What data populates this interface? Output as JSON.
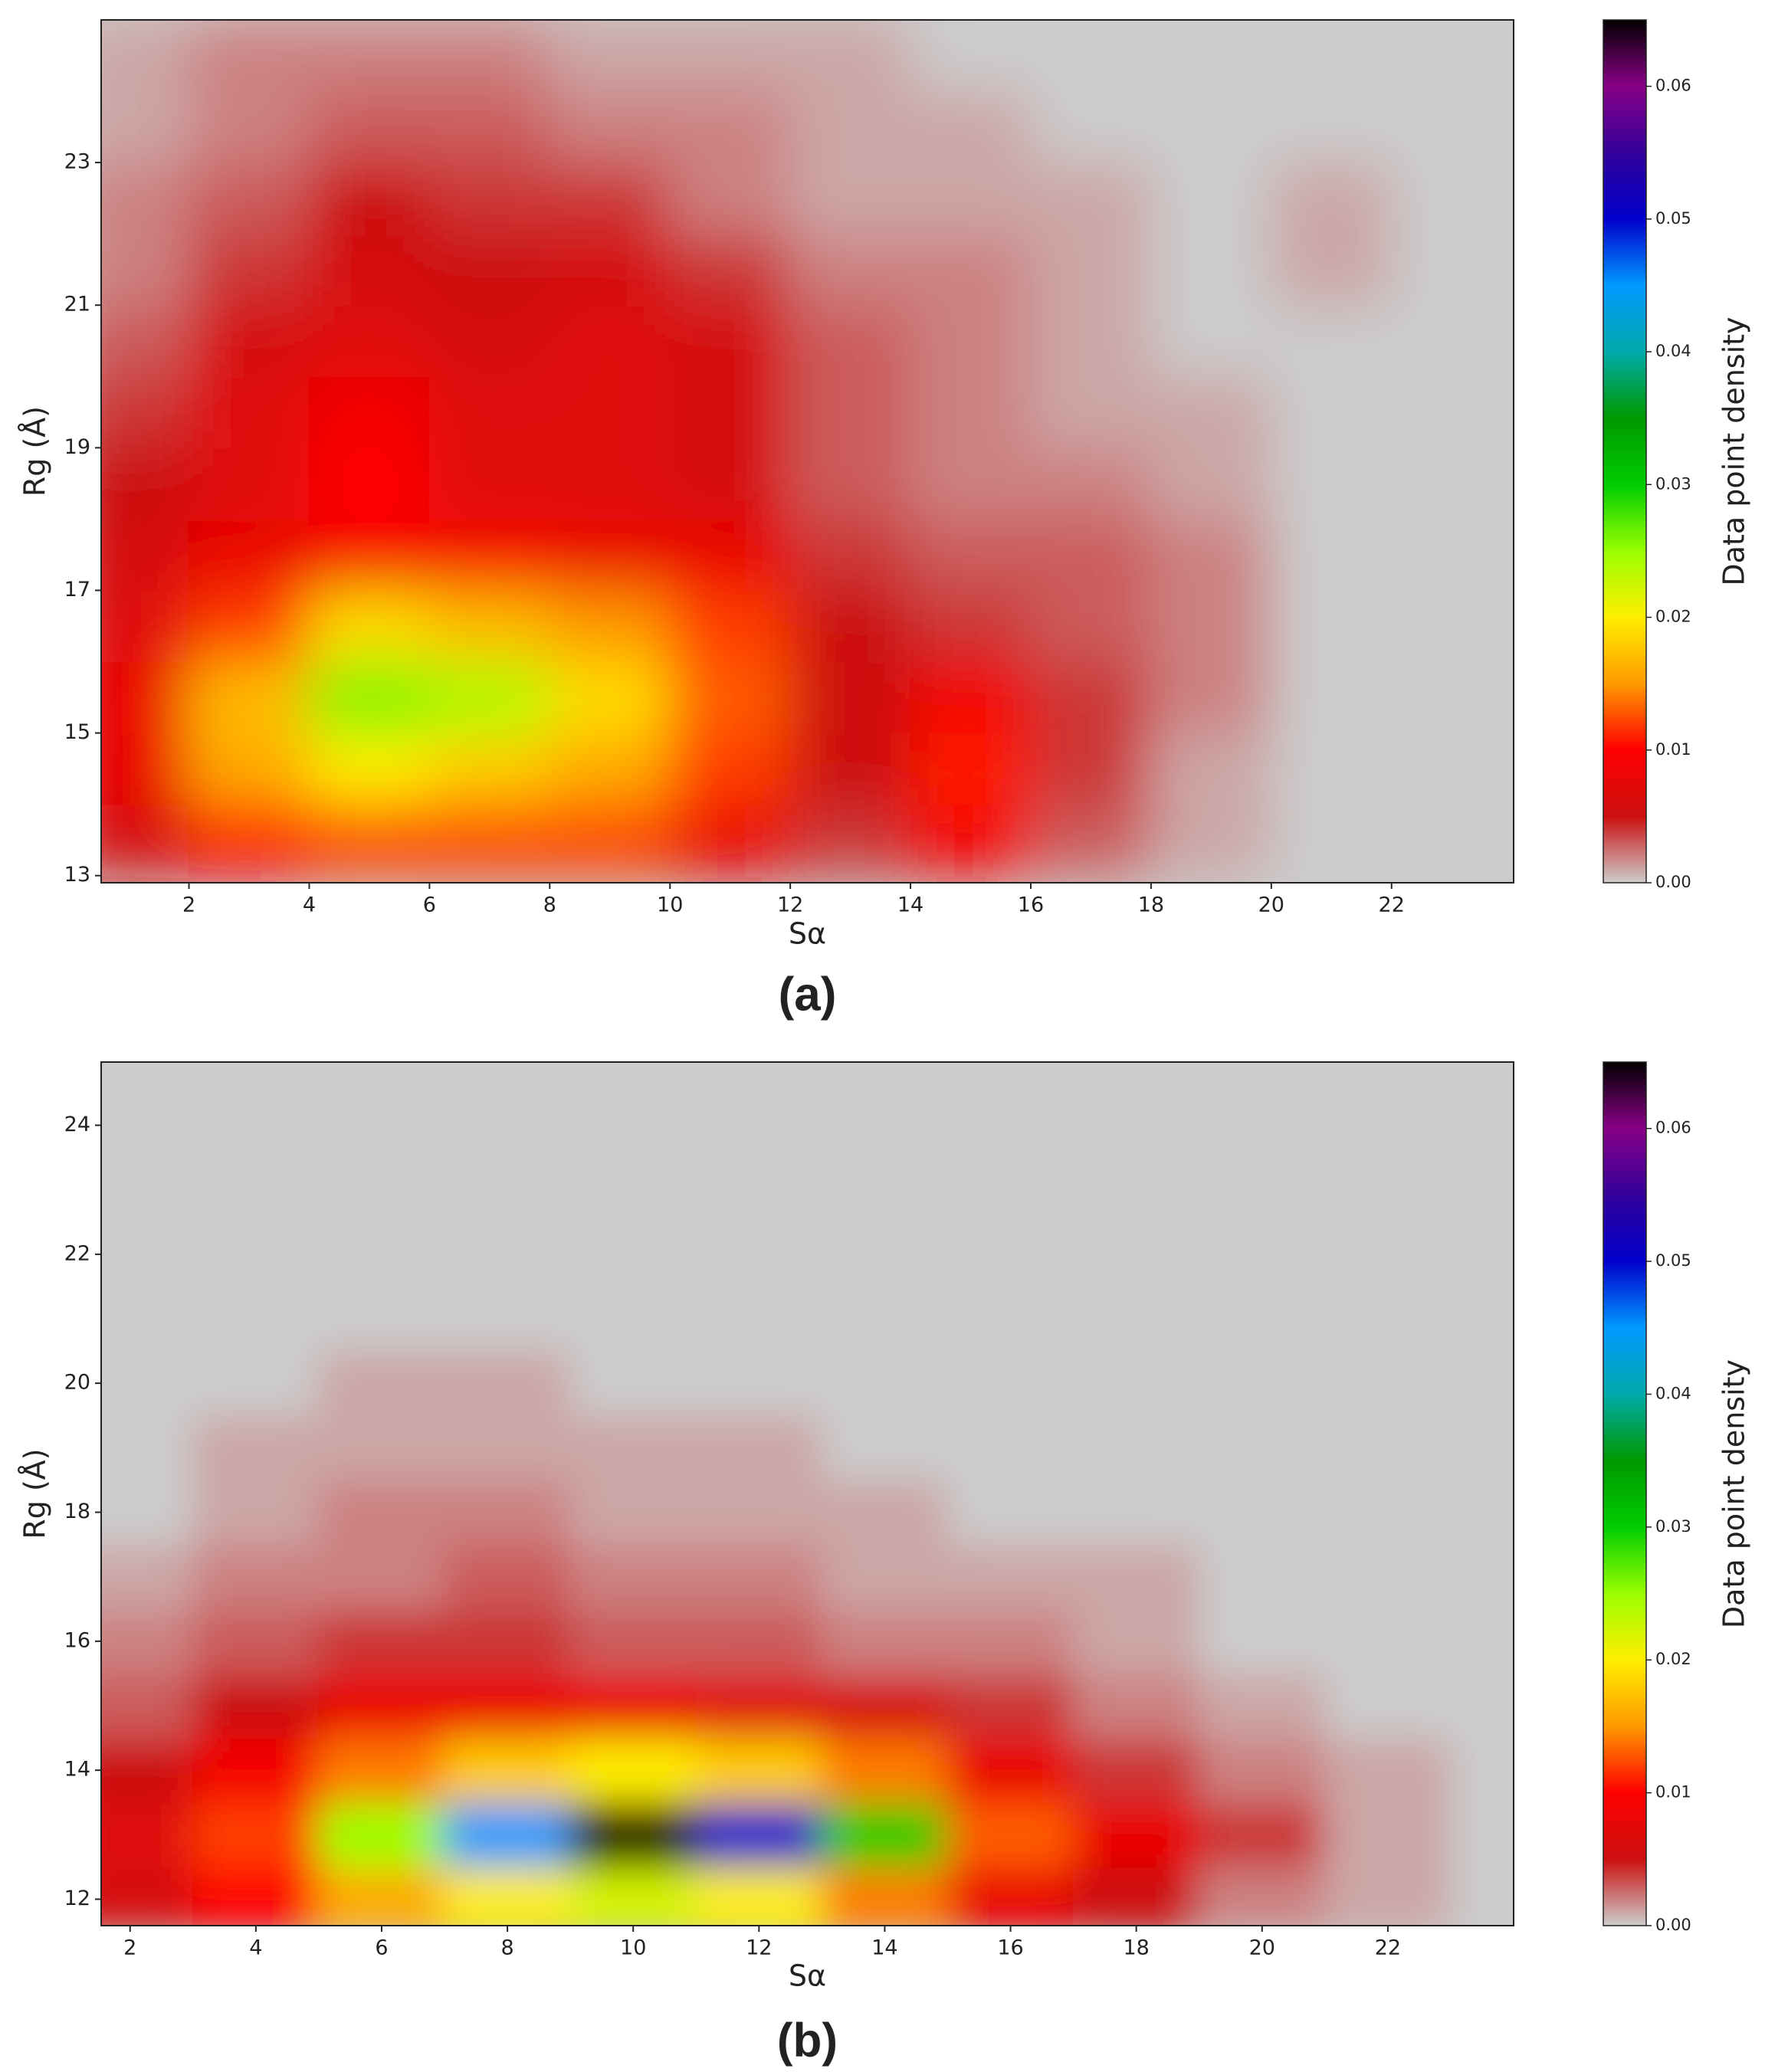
{
  "chart_data": [
    {
      "type": "heatmap",
      "panel_label": "(a)",
      "x_label": "Sα",
      "y_label": "Rg (Å)",
      "colorbar_label": "Data point density",
      "xlim": [
        0.54,
        24.03
      ],
      "ylim": [
        12.9,
        25
      ],
      "xticks": [
        2,
        4,
        6,
        8,
        10,
        12,
        14,
        16,
        18,
        20,
        22
      ],
      "yticks": [
        13,
        15,
        17,
        19,
        21,
        23
      ],
      "clim": [
        0,
        0.065
      ],
      "cticks": [
        {
          "value": 0,
          "label": "0.00"
        },
        {
          "value": 0.01,
          "label": "0.01"
        },
        {
          "value": 0.02,
          "label": "0.02"
        },
        {
          "value": 0.03,
          "label": "0.03"
        },
        {
          "value": 0.04,
          "label": "0.04"
        },
        {
          "value": 0.05,
          "label": "0.05"
        },
        {
          "value": 0.06,
          "label": "0.06"
        }
      ],
      "colormap": [
        "#cccccc",
        "#cc1010",
        "#ff0000",
        "#ff9900",
        "#ffee00",
        "#99ff00",
        "#00cc00",
        "#009900",
        "#00aaaa",
        "#0099ff",
        "#0000cc",
        "#330099",
        "#880088",
        "#000000"
      ],
      "x": [
        1,
        3,
        5,
        7,
        9,
        11,
        13,
        15,
        17,
        19,
        21,
        23
      ],
      "y": [
        13.5,
        14.5,
        15.5,
        16.5,
        17.5,
        18.5,
        19.5,
        20.5,
        21.5,
        22.5,
        23.5,
        24.5
      ],
      "z": [
        [
          0.006,
          0.01,
          0.012,
          0.012,
          0.012,
          0.008,
          0.004,
          0.009,
          0.003,
          0.001,
          0,
          0
        ],
        [
          0.008,
          0.016,
          0.02,
          0.018,
          0.016,
          0.012,
          0.005,
          0.011,
          0.004,
          0.001,
          0,
          0
        ],
        [
          0.008,
          0.017,
          0.026,
          0.024,
          0.019,
          0.013,
          0.005,
          0.009,
          0.004,
          0.002,
          0,
          0
        ],
        [
          0.007,
          0.012,
          0.019,
          0.017,
          0.015,
          0.012,
          0.005,
          0.004,
          0.003,
          0.002,
          0,
          0
        ],
        [
          0.006,
          0.008,
          0.009,
          0.009,
          0.008,
          0.008,
          0.004,
          0.003,
          0.003,
          0.002,
          0,
          0
        ],
        [
          0.005,
          0.007,
          0.01,
          0.007,
          0.007,
          0.006,
          0.003,
          0.002,
          0.002,
          0.001,
          0,
          0
        ],
        [
          0.004,
          0.007,
          0.009,
          0.007,
          0.007,
          0.006,
          0.003,
          0.002,
          0.001,
          0.001,
          0,
          0
        ],
        [
          0.003,
          0.006,
          0.007,
          0.006,
          0.007,
          0.006,
          0.003,
          0.002,
          0.001,
          0,
          0,
          0
        ],
        [
          0.002,
          0.004,
          0.006,
          0.005,
          0.006,
          0.004,
          0.002,
          0.002,
          0.001,
          0,
          0.001,
          0
        ],
        [
          0.002,
          0.003,
          0.005,
          0.004,
          0.004,
          0.002,
          0.001,
          0.001,
          0.001,
          0,
          0.001,
          0
        ],
        [
          0.001,
          0.002,
          0.003,
          0.003,
          0.002,
          0.002,
          0.001,
          0.001,
          0,
          0,
          0,
          0
        ],
        [
          0.001,
          0.002,
          0.002,
          0.002,
          0.001,
          0.001,
          0.001,
          0,
          0,
          0,
          0,
          0
        ]
      ]
    },
    {
      "type": "heatmap",
      "panel_label": "(b)",
      "x_label": "Sα",
      "y_label": "Rg (Å)",
      "colorbar_label": "Data point density",
      "xlim": [
        1.54,
        24.0
      ],
      "ylim": [
        11.59,
        24.98
      ],
      "xticks": [
        2,
        4,
        6,
        8,
        10,
        12,
        14,
        16,
        18,
        20,
        22
      ],
      "yticks": [
        12,
        14,
        16,
        18,
        20,
        22,
        24
      ],
      "clim": [
        0,
        0.065
      ],
      "cticks": [
        {
          "value": 0,
          "label": "0.00"
        },
        {
          "value": 0.01,
          "label": "0.01"
        },
        {
          "value": 0.02,
          "label": "0.02"
        },
        {
          "value": 0.03,
          "label": "0.03"
        },
        {
          "value": 0.04,
          "label": "0.04"
        },
        {
          "value": 0.05,
          "label": "0.05"
        },
        {
          "value": 0.06,
          "label": "0.06"
        }
      ],
      "colormap": [
        "#cccccc",
        "#cc1010",
        "#ff0000",
        "#ff9900",
        "#ffee00",
        "#99ff00",
        "#00cc00",
        "#009900",
        "#00aaaa",
        "#0099ff",
        "#0000cc",
        "#330099",
        "#880088",
        "#000000"
      ],
      "x": [
        2,
        4,
        6,
        8,
        10,
        12,
        14,
        16,
        18,
        20,
        22,
        24
      ],
      "y": [
        12,
        13,
        14,
        15,
        16,
        17,
        18,
        19,
        20,
        21,
        22,
        23,
        24
      ],
      "z": [
        [
          0.006,
          0.01,
          0.016,
          0.02,
          0.022,
          0.02,
          0.014,
          0.008,
          0.005,
          0.002,
          0.001,
          0
        ],
        [
          0.007,
          0.012,
          0.025,
          0.045,
          0.065,
          0.05,
          0.03,
          0.013,
          0.008,
          0.004,
          0.001,
          0
        ],
        [
          0.005,
          0.009,
          0.014,
          0.018,
          0.02,
          0.018,
          0.014,
          0.008,
          0.004,
          0.002,
          0.001,
          0
        ],
        [
          0.003,
          0.005,
          0.008,
          0.008,
          0.008,
          0.007,
          0.006,
          0.004,
          0.002,
          0.001,
          0,
          0
        ],
        [
          0.002,
          0.003,
          0.004,
          0.004,
          0.003,
          0.003,
          0.002,
          0.002,
          0.001,
          0,
          0,
          0
        ],
        [
          0.001,
          0.002,
          0.002,
          0.003,
          0.002,
          0.002,
          0.001,
          0.001,
          0.001,
          0,
          0,
          0
        ],
        [
          0,
          0.001,
          0.002,
          0.002,
          0.001,
          0.001,
          0.001,
          0,
          0,
          0,
          0,
          0
        ],
        [
          0,
          0.001,
          0.001,
          0.001,
          0.001,
          0.001,
          0,
          0,
          0,
          0,
          0,
          0
        ],
        [
          0,
          0,
          0.001,
          0.001,
          0,
          0,
          0,
          0,
          0,
          0,
          0,
          0
        ],
        [
          0,
          0,
          0,
          0,
          0,
          0,
          0,
          0,
          0,
          0,
          0,
          0
        ],
        [
          0,
          0,
          0,
          0,
          0,
          0,
          0,
          0,
          0,
          0,
          0,
          0
        ],
        [
          0,
          0,
          0,
          0,
          0,
          0,
          0,
          0,
          0,
          0,
          0,
          0
        ],
        [
          0,
          0,
          0,
          0,
          0,
          0,
          0,
          0,
          0,
          0,
          0,
          0
        ]
      ]
    }
  ]
}
